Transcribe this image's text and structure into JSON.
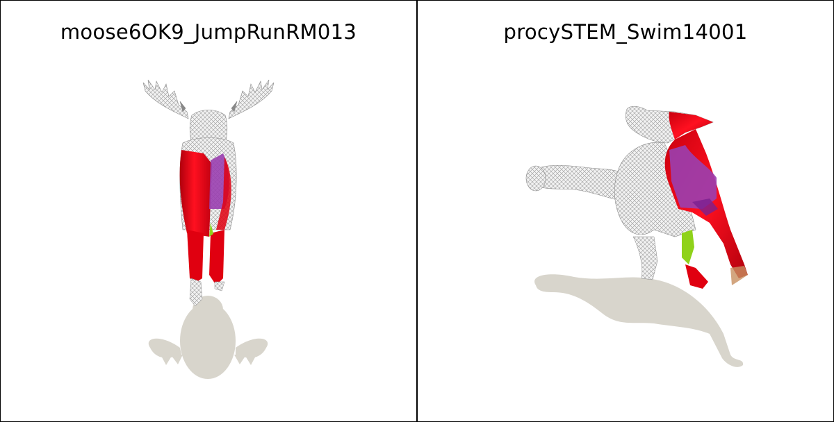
{
  "panels": [
    {
      "title": "moose6OK9_JumpRunRM013"
    },
    {
      "title": "procySTEM_Swim14001"
    }
  ],
  "colors": {
    "shadow": "#d8d5cc",
    "mesh": "#e2e2e2",
    "red": "#e00010",
    "purple": "#9a3fb0",
    "green": "#8fd21a"
  }
}
